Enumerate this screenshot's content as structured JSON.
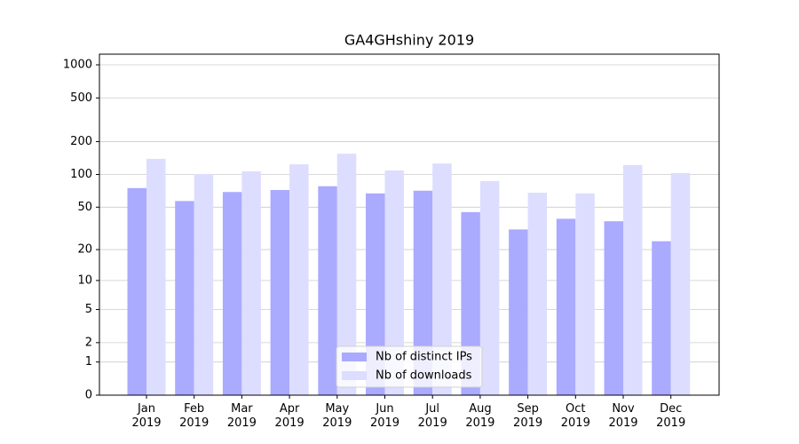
{
  "chart_data": {
    "type": "bar",
    "title": "GA4GHshiny 2019",
    "categories": [
      "Jan\n2019",
      "Feb\n2019",
      "Mar\n2019",
      "Apr\n2019",
      "May\n2019",
      "Jun\n2019",
      "Jul\n2019",
      "Aug\n2019",
      "Sep\n2019",
      "Oct\n2019",
      "Nov\n2019",
      "Dec\n2019"
    ],
    "series": [
      {
        "name": "Nb of distinct IPs",
        "color": "#aaaaff",
        "values": [
          75,
          57,
          69,
          72,
          78,
          67,
          71,
          45,
          31,
          39,
          37,
          24
        ]
      },
      {
        "name": "Nb of downloads",
        "color": "#ddddff",
        "values": [
          139,
          101,
          107,
          124,
          155,
          109,
          126,
          87,
          68,
          67,
          122,
          103
        ]
      }
    ],
    "y_scale": "log1p",
    "ylim": [
      0,
      1250
    ],
    "yticks": [
      0,
      1,
      2,
      5,
      10,
      20,
      50,
      100,
      200,
      500,
      1000
    ],
    "grid": true,
    "legend": "lower center"
  }
}
